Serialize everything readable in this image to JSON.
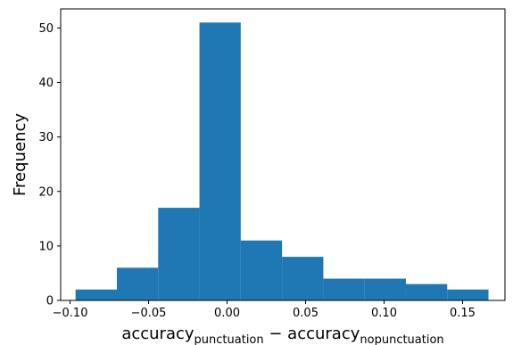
{
  "chart_data": {
    "type": "histogram",
    "xlabel": {
      "main_a": "accuracy",
      "sub_a": "punctuation",
      "operator": " − ",
      "main_b": "accuracy",
      "sub_b": "nopunctuation"
    },
    "ylabel": "Frequency",
    "xlim": [
      -0.106,
      0.177
    ],
    "ylim": [
      0,
      53.5
    ],
    "bins": [
      {
        "x0": -0.0965,
        "x1": -0.0702,
        "count": 2
      },
      {
        "x0": -0.0702,
        "x1": -0.0439,
        "count": 6
      },
      {
        "x0": -0.0439,
        "x1": -0.0176,
        "count": 17
      },
      {
        "x0": -0.0176,
        "x1": 0.0087,
        "count": 51
      },
      {
        "x0": 0.0087,
        "x1": 0.035,
        "count": 11
      },
      {
        "x0": 0.035,
        "x1": 0.0613,
        "count": 8
      },
      {
        "x0": 0.0613,
        "x1": 0.0876,
        "count": 4
      },
      {
        "x0": 0.0876,
        "x1": 0.1139,
        "count": 4
      },
      {
        "x0": 0.1139,
        "x1": 0.1402,
        "count": 3
      },
      {
        "x0": 0.1402,
        "x1": 0.1665,
        "count": 2
      }
    ],
    "xticks": [
      -0.1,
      -0.05,
      0.0,
      0.05,
      0.1,
      0.15
    ],
    "xtick_labels": [
      "−0.10",
      "−0.05",
      "0.00",
      "0.05",
      "0.10",
      "0.15"
    ],
    "yticks": [
      0,
      10,
      20,
      30,
      40,
      50
    ],
    "ytick_labels": [
      "0",
      "10",
      "20",
      "30",
      "40",
      "50"
    ],
    "bar_color": "#1f77b4",
    "grid": false,
    "legend": "none"
  }
}
